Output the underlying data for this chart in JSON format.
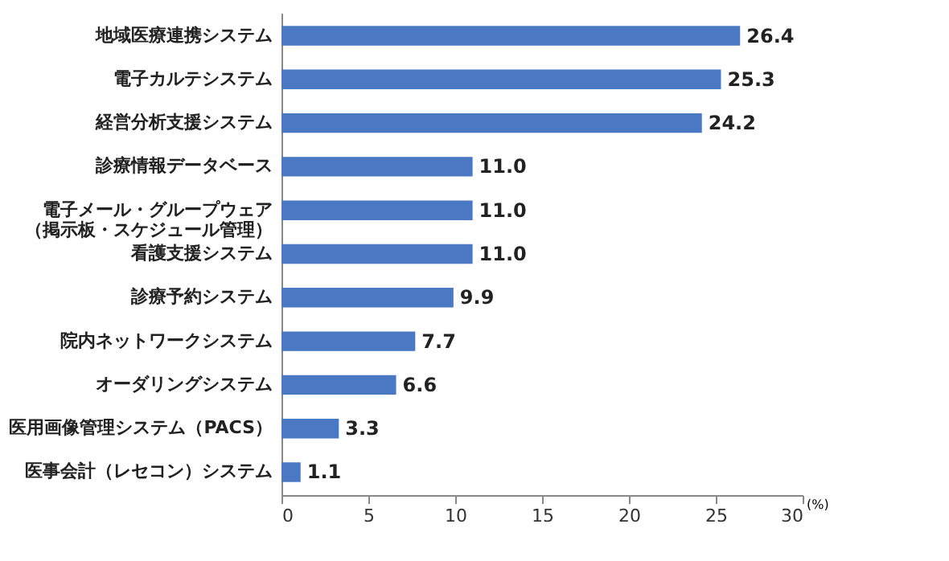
{
  "chart_data": {
    "type": "bar",
    "orientation": "horizontal",
    "xlabel": "(%)",
    "categories": [
      "地域医療連携システム",
      "電子カルテシステム",
      "経営分析支援システム",
      "診療情報データベース",
      "電子メール・グループウェア（掲示板・スケジュール管理）",
      "看護支援システム",
      "診療予約システム",
      "院内ネットワークシステム",
      "オーダリングシステム",
      "医用画像管理システム（PACS）",
      "医事会計（レセコン）システム"
    ],
    "values": [
      26.4,
      25.3,
      24.2,
      11.0,
      11.0,
      11.0,
      9.9,
      7.7,
      6.6,
      3.3,
      1.1
    ],
    "value_labels": [
      "26.4",
      "25.3",
      "24.2",
      "11.0",
      "11.0",
      "11.0",
      "9.9",
      "7.7",
      "6.6",
      "3.3",
      "1.1"
    ],
    "color": "#4a78c2",
    "xlim": [
      0,
      30
    ],
    "xticks": [
      0,
      5,
      10,
      15,
      20,
      25,
      30
    ],
    "grid": false
  }
}
